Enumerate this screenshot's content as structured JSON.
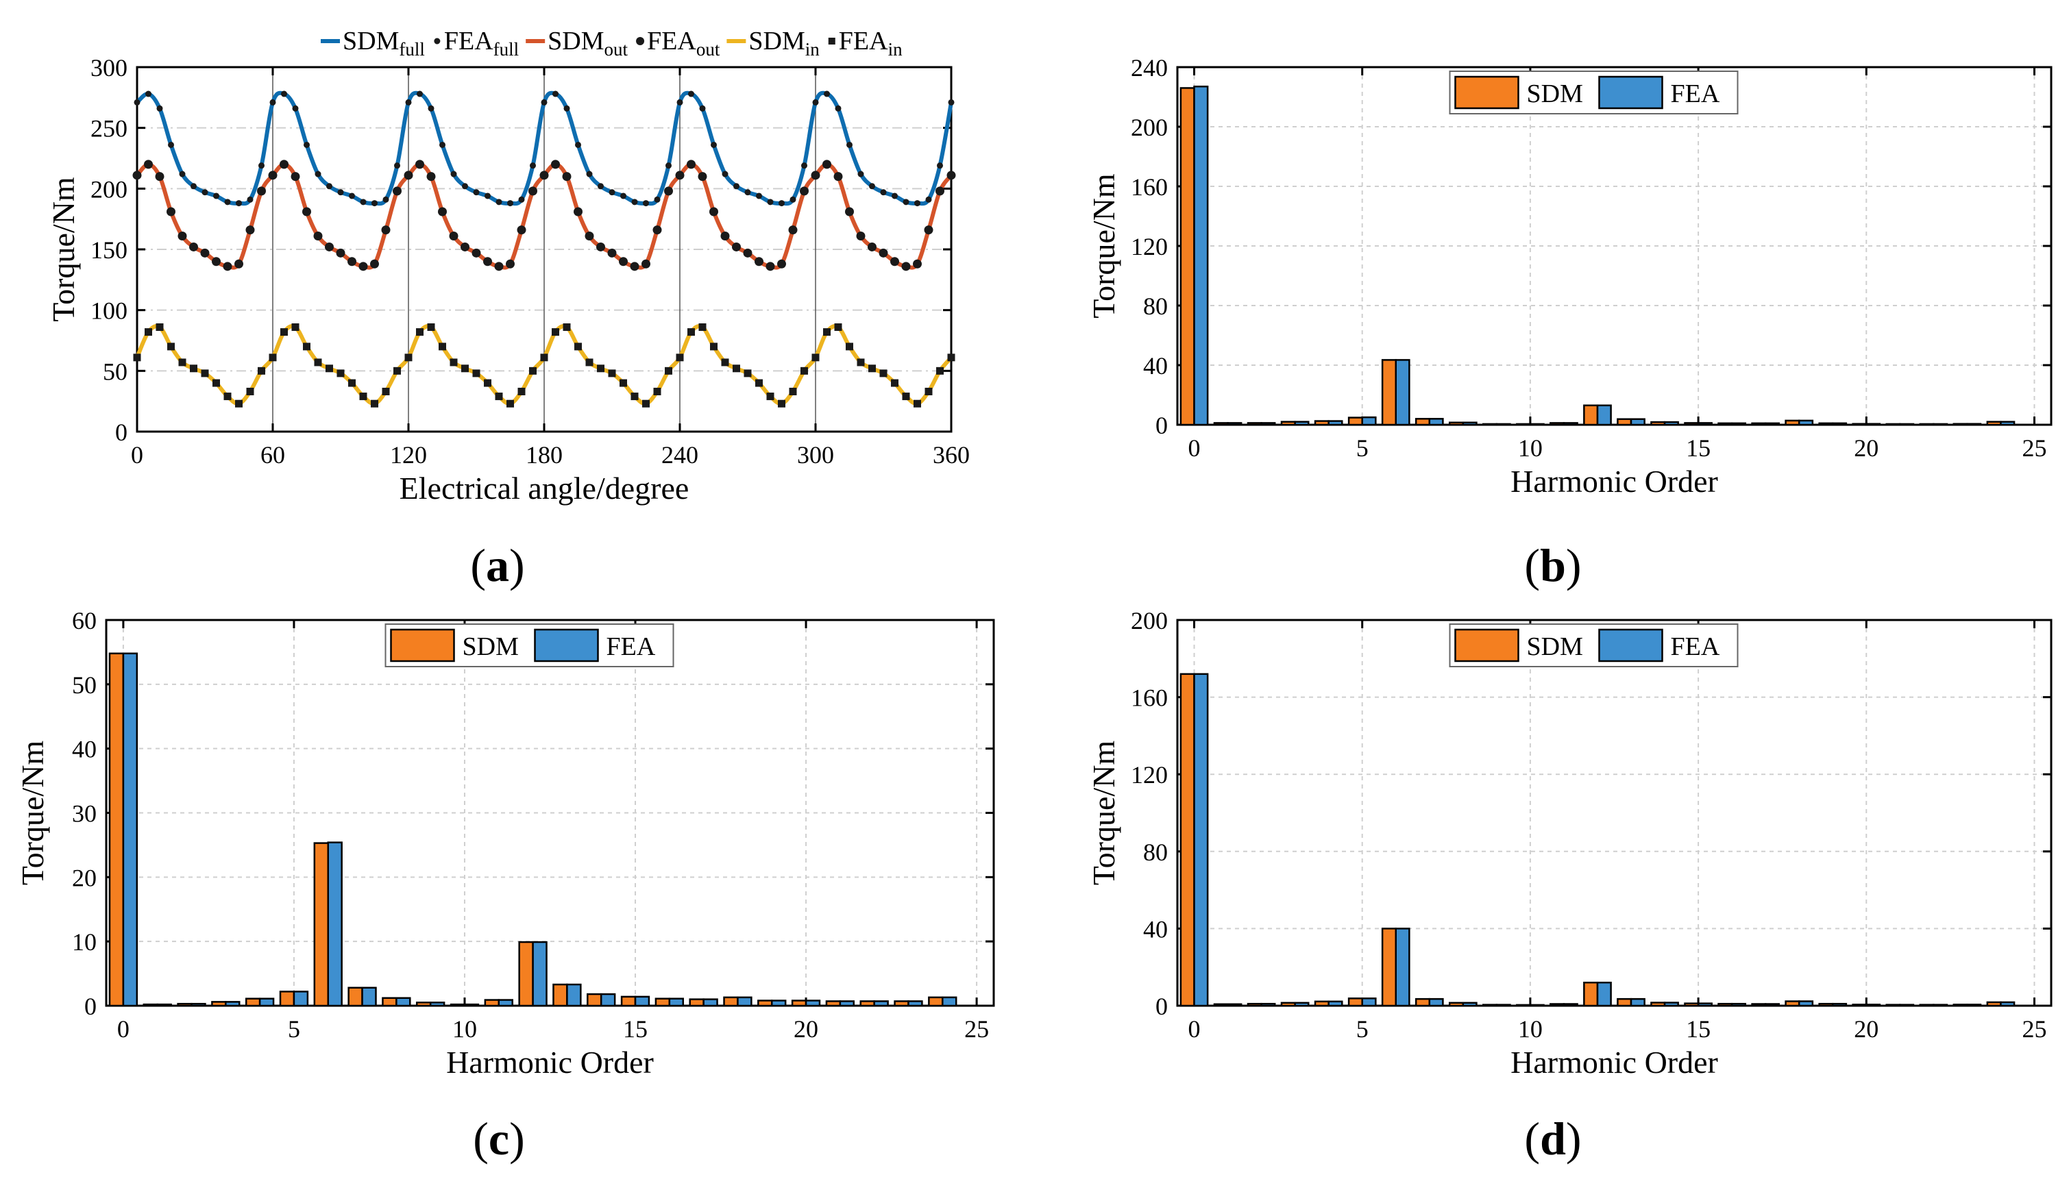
{
  "colors": {
    "sdm_bar": "#F47F20",
    "fea_bar": "#3E8FCF",
    "full": "#0E6DB0",
    "out": "#D5542A",
    "in": "#EDB420",
    "marker": "#1a1a1a",
    "grid": "#cfcfcf"
  },
  "chart_data": [
    {
      "id": "a",
      "type": "line",
      "caption": "(a)",
      "caption_letter": "a",
      "xlabel": "Electrical angle/degree",
      "ylabel": "Torque/Nm",
      "xlim": [
        0,
        360
      ],
      "ylim": [
        0,
        300
      ],
      "xticks": [
        0,
        60,
        120,
        180,
        240,
        300,
        360
      ],
      "yticks": [
        0,
        50,
        100,
        150,
        200,
        250,
        300
      ],
      "grid": true,
      "legend_position": "top",
      "period": 60,
      "x": [
        0,
        5,
        10,
        15,
        20,
        25,
        30,
        35,
        40,
        45,
        50,
        55
      ],
      "series": [
        {
          "key": "full",
          "name": "SDM",
          "sub": "full",
          "role": "line",
          "marker_name": "FEA",
          "marker_sub": "full",
          "marker_shape": "small-dot",
          "values": [
            271,
            278,
            266,
            236,
            212,
            202,
            197,
            194,
            189,
            188,
            191,
            219
          ]
        },
        {
          "key": "out",
          "name": "SDM",
          "sub": "out",
          "role": "line",
          "marker_name": "FEA",
          "marker_sub": "out",
          "marker_shape": "dot",
          "values": [
            211,
            220,
            210,
            181,
            161,
            152,
            147,
            140,
            136,
            138,
            166,
            198
          ]
        },
        {
          "key": "in",
          "name": "SDM",
          "sub": "in",
          "role": "line",
          "marker_name": "FEA",
          "marker_sub": "in",
          "marker_shape": "square",
          "values": [
            61,
            82,
            86,
            70,
            57,
            52,
            48,
            40,
            29,
            23,
            33,
            50
          ]
        }
      ]
    },
    {
      "id": "b",
      "type": "bar",
      "caption": "(b)",
      "caption_letter": "b",
      "xlabel": "Harmonic Order",
      "ylabel": "Torque/Nm",
      "xlim": [
        -0.5,
        25.5
      ],
      "ylim": [
        0,
        240
      ],
      "xticks": [
        0,
        5,
        10,
        15,
        20,
        25
      ],
      "yticks": [
        0,
        40,
        80,
        120,
        160,
        200,
        240
      ],
      "grid": true,
      "legend_position": "top-center",
      "categories": [
        0,
        1,
        2,
        3,
        4,
        5,
        6,
        7,
        8,
        9,
        10,
        11,
        12,
        13,
        14,
        15,
        16,
        17,
        18,
        19,
        20,
        21,
        22,
        23,
        24
      ],
      "series": [
        {
          "name": "SDM",
          "values": [
            226,
            1.2,
            1.2,
            2.0,
            2.5,
            4.8,
            43.5,
            4.0,
            1.5,
            0.5,
            0.5,
            1.2,
            13.0,
            3.8,
            1.8,
            1.2,
            1.0,
            1.0,
            2.8,
            1.0,
            0.6,
            0.5,
            0.5,
            0.6,
            2.0
          ]
        },
        {
          "name": "FEA",
          "values": [
            227,
            1.2,
            1.2,
            2.0,
            2.5,
            5.0,
            43.5,
            4.0,
            1.5,
            0.5,
            0.5,
            1.2,
            13.0,
            3.8,
            1.8,
            1.2,
            1.0,
            1.0,
            2.8,
            1.0,
            0.6,
            0.5,
            0.5,
            0.6,
            2.0
          ]
        }
      ]
    },
    {
      "id": "c",
      "type": "bar",
      "caption": "(c)",
      "caption_letter": "c",
      "xlabel": "Harmonic Order",
      "ylabel": "Torque/Nm",
      "xlim": [
        -0.5,
        25.5
      ],
      "ylim": [
        0,
        60
      ],
      "xticks": [
        0,
        5,
        10,
        15,
        20,
        25
      ],
      "yticks": [
        0,
        10,
        20,
        30,
        40,
        50,
        60
      ],
      "grid": true,
      "legend_position": "top-center",
      "categories": [
        0,
        1,
        2,
        3,
        4,
        5,
        6,
        7,
        8,
        9,
        10,
        11,
        12,
        13,
        14,
        15,
        16,
        17,
        18,
        19,
        20,
        21,
        22,
        23,
        24
      ],
      "series": [
        {
          "name": "SDM",
          "values": [
            54.8,
            0.2,
            0.3,
            0.6,
            1.1,
            2.2,
            25.3,
            2.8,
            1.2,
            0.5,
            0.2,
            0.9,
            9.9,
            3.3,
            1.8,
            1.4,
            1.1,
            1.0,
            1.3,
            0.8,
            0.8,
            0.7,
            0.7,
            0.7,
            1.3
          ]
        },
        {
          "name": "FEA",
          "values": [
            54.8,
            0.2,
            0.3,
            0.6,
            1.1,
            2.2,
            25.4,
            2.8,
            1.2,
            0.5,
            0.2,
            0.9,
            9.9,
            3.3,
            1.8,
            1.4,
            1.1,
            1.0,
            1.3,
            0.8,
            0.8,
            0.7,
            0.7,
            0.7,
            1.3
          ]
        }
      ]
    },
    {
      "id": "d",
      "type": "bar",
      "caption": "(d)",
      "caption_letter": "d",
      "xlabel": "Harmonic Order",
      "ylabel": "Torque/Nm",
      "xlim": [
        -0.5,
        25.5
      ],
      "ylim": [
        0,
        200
      ],
      "xticks": [
        0,
        5,
        10,
        15,
        20,
        25
      ],
      "yticks": [
        0,
        40,
        80,
        120,
        160,
        200
      ],
      "grid": true,
      "legend_position": "top-center",
      "categories": [
        0,
        1,
        2,
        3,
        4,
        5,
        6,
        7,
        8,
        9,
        10,
        11,
        12,
        13,
        14,
        15,
        16,
        17,
        18,
        19,
        20,
        21,
        22,
        23,
        24
      ],
      "series": [
        {
          "name": "SDM",
          "values": [
            172,
            0.8,
            1.0,
            1.5,
            2.2,
            3.8,
            40.0,
            3.5,
            1.5,
            0.5,
            0.4,
            0.9,
            12.0,
            3.5,
            1.6,
            1.2,
            1.0,
            0.9,
            2.3,
            1.0,
            0.6,
            0.5,
            0.5,
            0.6,
            1.8
          ]
        },
        {
          "name": "FEA",
          "values": [
            172,
            0.8,
            1.0,
            1.5,
            2.2,
            3.8,
            40.0,
            3.5,
            1.5,
            0.5,
            0.4,
            0.9,
            12.0,
            3.5,
            1.6,
            1.2,
            1.0,
            0.9,
            2.3,
            1.0,
            0.6,
            0.5,
            0.5,
            0.6,
            1.8
          ]
        }
      ]
    }
  ]
}
